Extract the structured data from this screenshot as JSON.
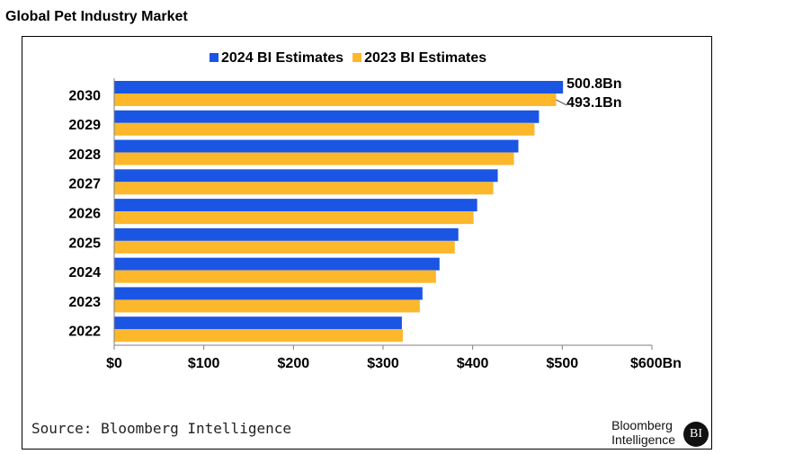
{
  "page": {
    "title": "Global Pet Industry Market"
  },
  "footer": {
    "source": "Source: Bloomberg Intelligence",
    "brand_line1": "Bloomberg",
    "brand_line2": "Intelligence",
    "brand_badge": "BI"
  },
  "colors": {
    "series_2024": "#1a55e3",
    "series_2023": "#fcb72a",
    "axis": "#808080"
  },
  "chart_data": {
    "type": "bar",
    "orientation": "horizontal",
    "title": "Global Pet Industry Market",
    "categories": [
      "2030",
      "2029",
      "2028",
      "2027",
      "2026",
      "2025",
      "2024",
      "2023",
      "2022"
    ],
    "series": [
      {
        "name": "2024 BI Estimates",
        "color": "#1a55e3",
        "values": [
          500.8,
          474,
          451,
          428,
          405,
          384,
          363,
          344,
          321
        ]
      },
      {
        "name": "2023 BI Estimates",
        "color": "#fcb72a",
        "values": [
          493.1,
          469,
          446,
          423,
          401,
          380,
          359,
          341,
          322
        ]
      }
    ],
    "data_labels": [
      {
        "series": "2024 BI Estimates",
        "category": "2030",
        "text": "500.8Bn"
      },
      {
        "series": "2023 BI Estimates",
        "category": "2030",
        "text": "493.1Bn"
      }
    ],
    "xlim": [
      0,
      600
    ],
    "x_ticks": [
      0,
      100,
      200,
      300,
      400,
      500,
      600
    ],
    "x_tick_labels": [
      "$0",
      "$100",
      "$200",
      "$300",
      "$400",
      "$500",
      "$600Bn"
    ],
    "xlabel": "",
    "ylabel": "",
    "legend_position": "top-center",
    "grid": false
  }
}
